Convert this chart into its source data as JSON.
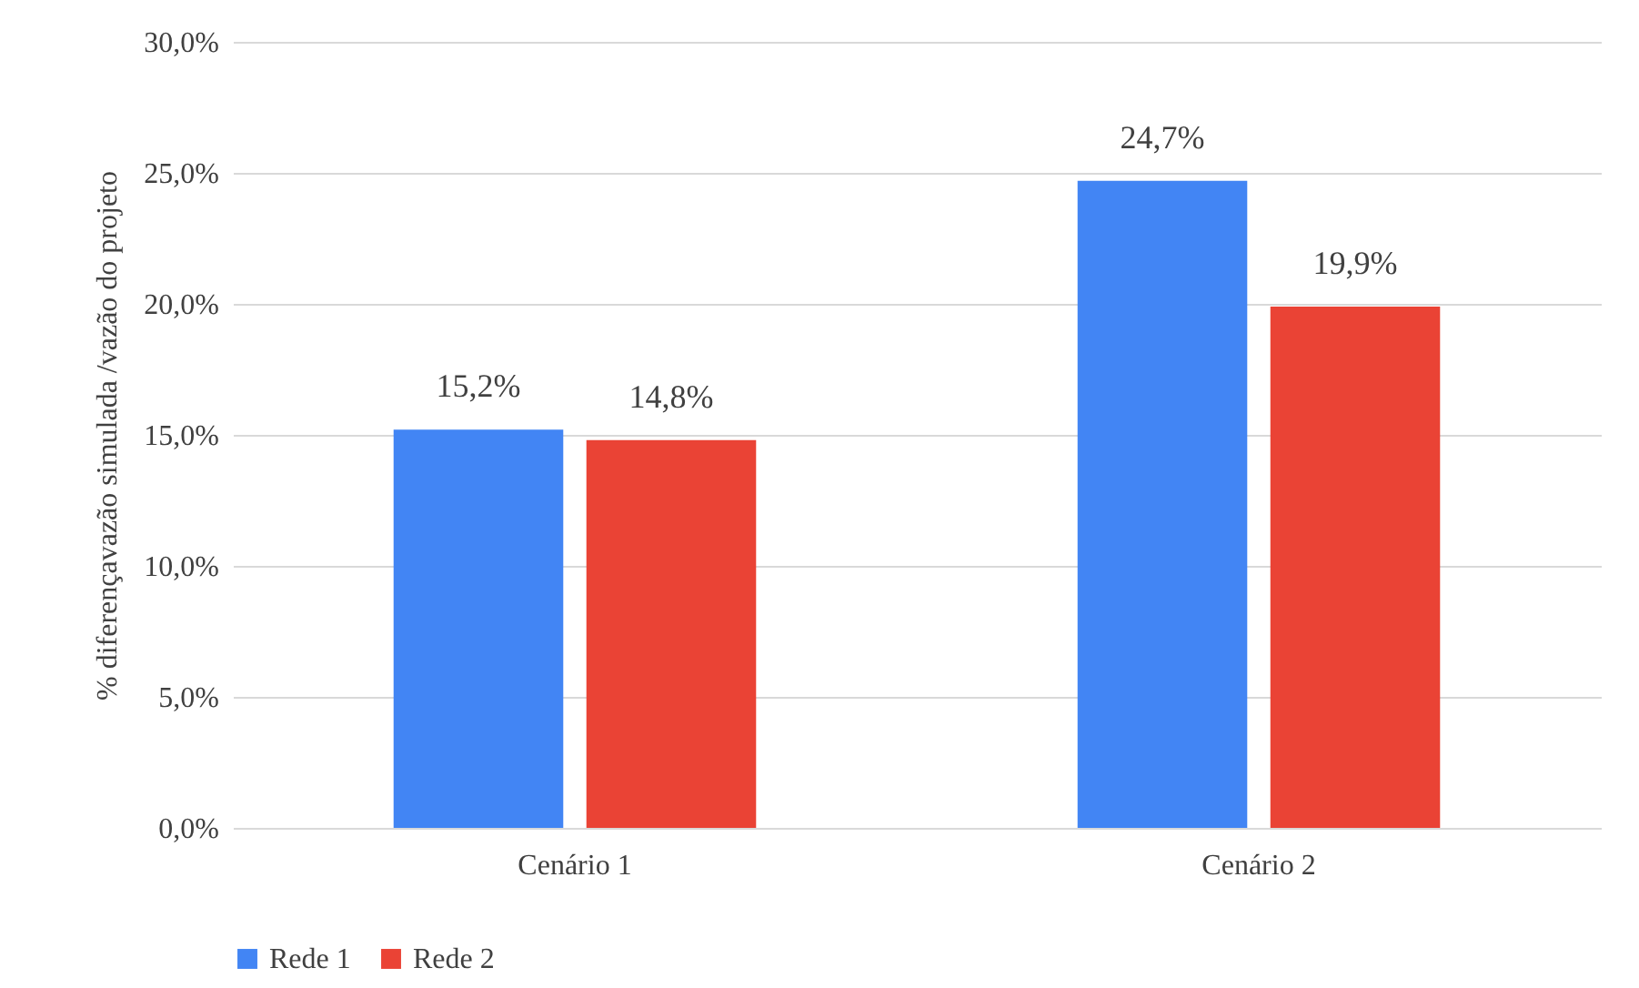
{
  "chart_data": {
    "type": "bar",
    "ylabel": "% diferençavazão simulada /vazão do projeto",
    "categories": [
      "Cenário 1",
      "Cenário 2"
    ],
    "series": [
      {
        "name": "Rede 1",
        "color": "#4285f4",
        "values": [
          15.2,
          24.7
        ],
        "value_labels": [
          "15,2%",
          "24,7%"
        ]
      },
      {
        "name": "Rede 2",
        "color": "#ea4335",
        "values": [
          14.8,
          19.9
        ],
        "value_labels": [
          "14,8%",
          "19,9%"
        ]
      }
    ],
    "ylim": [
      0,
      30
    ],
    "yticks": [
      {
        "value": 0,
        "label": "0,0%"
      },
      {
        "value": 5,
        "label": "5,0%"
      },
      {
        "value": 10,
        "label": "10,0%"
      },
      {
        "value": 15,
        "label": "15,0%"
      },
      {
        "value": 20,
        "label": "20,0%"
      },
      {
        "value": 25,
        "label": "25,0%"
      },
      {
        "value": 30,
        "label": "30,0%"
      }
    ],
    "grid": "y",
    "legend": "bottom"
  }
}
